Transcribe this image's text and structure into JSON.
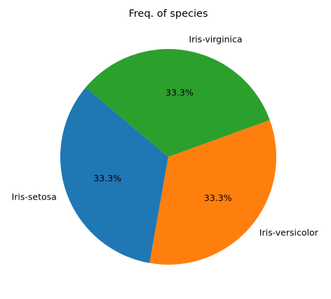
{
  "chart_data": {
    "type": "pie",
    "title": "Freq. of species",
    "categories": [
      "Iris-setosa",
      "Iris-versicolor",
      "Iris-virginica"
    ],
    "values": [
      50,
      50,
      50
    ],
    "percent_labels": [
      "33.3%",
      "33.3%",
      "33.3%"
    ],
    "colors": [
      "#1f77b4",
      "#ff7f0e",
      "#2ca02c"
    ],
    "start_angle_deg": 140,
    "direction": "counterclockwise",
    "legend": "none"
  }
}
